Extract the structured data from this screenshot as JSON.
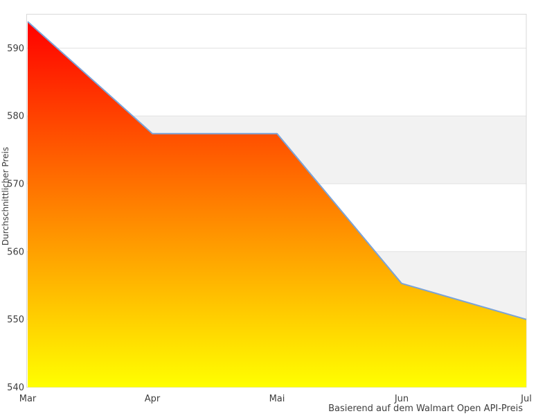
{
  "chart_data": {
    "type": "area",
    "title": "",
    "xlabel": "",
    "ylabel": "Durchschnittlicher Preis",
    "subtitle": "Basierend auf dem Walmart Open API-Preis",
    "categories": [
      "Mar",
      "Apr",
      "Mai",
      "Jun",
      "Jul"
    ],
    "values": [
      593.9,
      577.4,
      577.4,
      555.3,
      550.0
    ],
    "ylim": [
      540,
      595
    ],
    "yticks": [
      540,
      550,
      560,
      570,
      580,
      590
    ],
    "grid": "horizontal-only",
    "legend": "none",
    "band_intervals": [
      [
        570,
        580
      ],
      [
        550,
        560
      ]
    ],
    "colors": {
      "background": "#ffffff",
      "band": "#f2f2f2",
      "gridline": "#e1e1e1",
      "border": "#d9d9d9",
      "line": "#7aa3d8",
      "gradient_top": "#ff0000",
      "gradient_bottom": "#ffff00",
      "left_edge_top": "#c00000",
      "left_edge_mid": "#d84400",
      "left_edge_bottom": "#eebb00",
      "text": "#3d3d3d"
    }
  }
}
